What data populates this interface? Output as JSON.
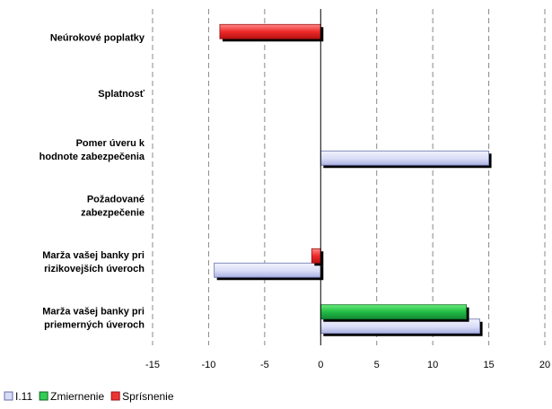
{
  "chart_data": {
    "type": "bar",
    "orientation": "horizontal",
    "categories": [
      [
        "Neúrokové poplatky"
      ],
      [
        "Splatnosť"
      ],
      [
        "Pomer úveru k",
        "hodnote zabezpečenia"
      ],
      [
        "Požadované",
        "zabezpečenie"
      ],
      [
        "Marža vašej banky pri",
        "rizikovejších úveroch"
      ],
      [
        "Marža vašej banky pri",
        "priemerných úveroch"
      ]
    ],
    "series": [
      {
        "name": "I.11",
        "color": "#d8dcf6",
        "values": [
          0,
          0,
          15,
          0,
          -9.5,
          14.2
        ]
      },
      {
        "name": "Zmiernenie",
        "color": "#33cc55",
        "values": [
          0,
          0,
          0,
          0,
          0,
          13
        ]
      },
      {
        "name": "Sprísnenie",
        "color": "#ee3333",
        "values": [
          -9,
          0,
          0,
          0,
          -0.8,
          0
        ]
      }
    ],
    "xlim": [
      -15,
      20
    ],
    "xticks": [
      "-15",
      "-10",
      "-5",
      "0",
      "5",
      "10",
      "15",
      "20"
    ],
    "grid": "vertical-dashed",
    "legend": "bottom-left"
  }
}
